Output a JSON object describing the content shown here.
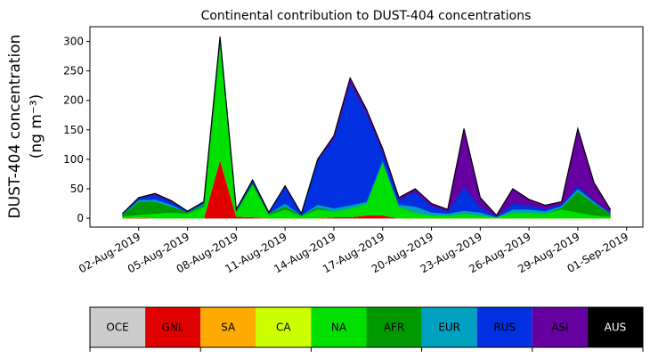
{
  "chart_data": {
    "type": "stacked_area",
    "title": "Continental contribution to DUST-404 concentrations",
    "ylabel": [
      "DUST-404 concentration",
      "(ng m⁻³)"
    ],
    "x": [
      "2019-08-01",
      "2019-08-02",
      "2019-08-03",
      "2019-08-04",
      "2019-08-05",
      "2019-08-06",
      "2019-08-07",
      "2019-08-08",
      "2019-08-09",
      "2019-08-10",
      "2019-08-11",
      "2019-08-12",
      "2019-08-13",
      "2019-08-14",
      "2019-08-15",
      "2019-08-16",
      "2019-08-17",
      "2019-08-18",
      "2019-08-19",
      "2019-08-20",
      "2019-08-21",
      "2019-08-22",
      "2019-08-23",
      "2019-08-24",
      "2019-08-25",
      "2019-08-26",
      "2019-08-27",
      "2019-08-28",
      "2019-08-29",
      "2019-08-30",
      "2019-08-31"
    ],
    "xlim": [
      "2019-07-30",
      "2019-09-02"
    ],
    "xticks": [
      {
        "value": "2019-08-02",
        "label": "02-Aug-2019"
      },
      {
        "value": "2019-08-05",
        "label": "05-Aug-2019"
      },
      {
        "value": "2019-08-08",
        "label": "08-Aug-2019"
      },
      {
        "value": "2019-08-11",
        "label": "11-Aug-2019"
      },
      {
        "value": "2019-08-14",
        "label": "14-Aug-2019"
      },
      {
        "value": "2019-08-17",
        "label": "17-Aug-2019"
      },
      {
        "value": "2019-08-20",
        "label": "20-Aug-2019"
      },
      {
        "value": "2019-08-23",
        "label": "23-Aug-2019"
      },
      {
        "value": "2019-08-26",
        "label": "26-Aug-2019"
      },
      {
        "value": "2019-08-29",
        "label": "29-Aug-2019"
      },
      {
        "value": "2019-09-01",
        "label": "01-Sep-2019"
      }
    ],
    "ylim": [
      -15,
      325
    ],
    "yticks": [
      0,
      50,
      100,
      150,
      200,
      250,
      300
    ],
    "series": [
      {
        "name": "OCE",
        "color": "#cccccc",
        "values": [
          0,
          0,
          0,
          0,
          0,
          0,
          0,
          0,
          0,
          0,
          0,
          0,
          0,
          0,
          0,
          0,
          0,
          0,
          0,
          0,
          0,
          0,
          0,
          0,
          0,
          0,
          0,
          0,
          0,
          0,
          0
        ]
      },
      {
        "name": "GNL",
        "color": "#e00000",
        "values": [
          0,
          1,
          0,
          0,
          0,
          0,
          100,
          3,
          2,
          0,
          0,
          0,
          0,
          2,
          2,
          5,
          5,
          0,
          0,
          0,
          0,
          0,
          0,
          0,
          0,
          0,
          0,
          0,
          0,
          0,
          0
        ]
      },
      {
        "name": "SA",
        "color": "#ffaa00",
        "values": [
          0,
          0,
          0,
          0,
          0,
          0,
          0,
          0,
          0,
          0,
          0,
          0,
          0,
          0,
          0,
          0,
          0,
          0,
          0,
          0,
          0,
          0,
          0,
          0,
          0,
          0,
          0,
          0,
          0,
          0,
          0
        ]
      },
      {
        "name": "CA",
        "color": "#ccff00",
        "values": [
          0,
          0,
          0,
          0,
          0,
          0,
          0,
          0,
          0,
          0,
          0,
          0,
          0,
          0,
          0,
          0,
          0,
          0,
          0,
          0,
          0,
          0,
          0,
          0,
          0,
          0,
          0,
          0,
          0,
          0,
          0
        ]
      },
      {
        "name": "NA",
        "color": "#00e000",
        "values": [
          3,
          5,
          8,
          10,
          8,
          20,
          195,
          8,
          55,
          6,
          15,
          4,
          15,
          10,
          15,
          20,
          90,
          20,
          10,
          5,
          5,
          8,
          5,
          2,
          10,
          10,
          8,
          15,
          10,
          5,
          3
        ]
      },
      {
        "name": "AFR",
        "color": "#009900",
        "values": [
          3,
          22,
          20,
          10,
          2,
          3,
          5,
          2,
          3,
          2,
          5,
          1,
          3,
          0,
          0,
          0,
          0,
          0,
          0,
          0,
          0,
          0,
          0,
          0,
          0,
          0,
          0,
          3,
          35,
          20,
          5
        ]
      },
      {
        "name": "EUR",
        "color": "#00a0c0",
        "values": [
          1,
          3,
          4,
          3,
          0,
          2,
          3,
          0,
          0,
          0,
          5,
          0,
          5,
          5,
          5,
          3,
          3,
          3,
          10,
          5,
          3,
          5,
          5,
          0,
          5,
          5,
          4,
          3,
          5,
          3,
          0
        ]
      },
      {
        "name": "RUS",
        "color": "#0030e0",
        "values": [
          1,
          3,
          8,
          5,
          2,
          3,
          5,
          2,
          5,
          2,
          28,
          3,
          75,
          118,
          208,
          150,
          15,
          8,
          25,
          10,
          4,
          40,
          10,
          1,
          10,
          7,
          4,
          3,
          5,
          2,
          2
        ]
      },
      {
        "name": "ASI",
        "color": "#6600a0",
        "values": [
          0,
          1,
          2,
          2,
          0,
          0,
          0,
          0,
          0,
          0,
          2,
          0,
          2,
          5,
          8,
          7,
          5,
          4,
          5,
          5,
          3,
          99,
          15,
          2,
          25,
          10,
          6,
          4,
          97,
          30,
          5
        ]
      },
      {
        "name": "AUS",
        "color": "#000000",
        "values": [
          0,
          0,
          0,
          0,
          0,
          0,
          0,
          0,
          0,
          0,
          0,
          0,
          0,
          0,
          0,
          0,
          0,
          0,
          0,
          0,
          0,
          0,
          0,
          0,
          0,
          0,
          0,
          0,
          0,
          0,
          0
        ]
      }
    ]
  }
}
